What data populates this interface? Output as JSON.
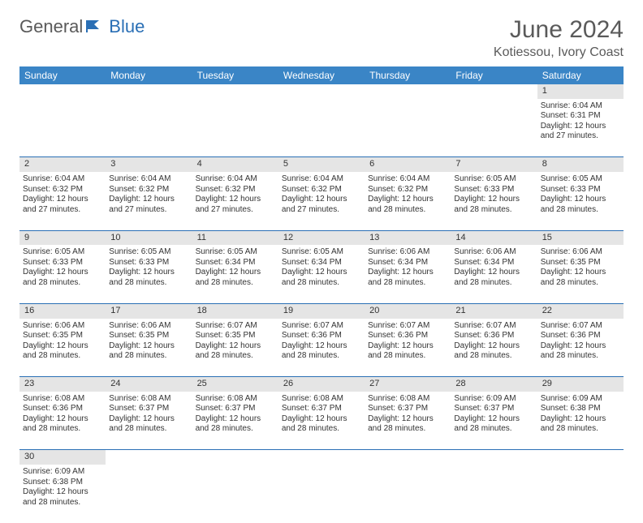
{
  "logo": {
    "general": "General",
    "blue": "Blue"
  },
  "title": "June 2024",
  "location": "Kotiessou, Ivory Coast",
  "colors": {
    "header_bg": "#3a85c6",
    "header_text": "#ffffff",
    "daynum_bg": "#e5e5e5",
    "border": "#2a6fb5",
    "text": "#333333",
    "logo_gray": "#5a5a5a",
    "logo_blue": "#2a6fb5"
  },
  "days_of_week": [
    "Sunday",
    "Monday",
    "Tuesday",
    "Wednesday",
    "Thursday",
    "Friday",
    "Saturday"
  ],
  "weeks": [
    {
      "nums": [
        "",
        "",
        "",
        "",
        "",
        "",
        "1"
      ],
      "cells": [
        null,
        null,
        null,
        null,
        null,
        null,
        {
          "sunrise": "6:04 AM",
          "sunset": "6:31 PM",
          "daylight": "12 hours and 27 minutes."
        }
      ]
    },
    {
      "nums": [
        "2",
        "3",
        "4",
        "5",
        "6",
        "7",
        "8"
      ],
      "cells": [
        {
          "sunrise": "6:04 AM",
          "sunset": "6:32 PM",
          "daylight": "12 hours and 27 minutes."
        },
        {
          "sunrise": "6:04 AM",
          "sunset": "6:32 PM",
          "daylight": "12 hours and 27 minutes."
        },
        {
          "sunrise": "6:04 AM",
          "sunset": "6:32 PM",
          "daylight": "12 hours and 27 minutes."
        },
        {
          "sunrise": "6:04 AM",
          "sunset": "6:32 PM",
          "daylight": "12 hours and 27 minutes."
        },
        {
          "sunrise": "6:04 AM",
          "sunset": "6:32 PM",
          "daylight": "12 hours and 28 minutes."
        },
        {
          "sunrise": "6:05 AM",
          "sunset": "6:33 PM",
          "daylight": "12 hours and 28 minutes."
        },
        {
          "sunrise": "6:05 AM",
          "sunset": "6:33 PM",
          "daylight": "12 hours and 28 minutes."
        }
      ]
    },
    {
      "nums": [
        "9",
        "10",
        "11",
        "12",
        "13",
        "14",
        "15"
      ],
      "cells": [
        {
          "sunrise": "6:05 AM",
          "sunset": "6:33 PM",
          "daylight": "12 hours and 28 minutes."
        },
        {
          "sunrise": "6:05 AM",
          "sunset": "6:33 PM",
          "daylight": "12 hours and 28 minutes."
        },
        {
          "sunrise": "6:05 AM",
          "sunset": "6:34 PM",
          "daylight": "12 hours and 28 minutes."
        },
        {
          "sunrise": "6:05 AM",
          "sunset": "6:34 PM",
          "daylight": "12 hours and 28 minutes."
        },
        {
          "sunrise": "6:06 AM",
          "sunset": "6:34 PM",
          "daylight": "12 hours and 28 minutes."
        },
        {
          "sunrise": "6:06 AM",
          "sunset": "6:34 PM",
          "daylight": "12 hours and 28 minutes."
        },
        {
          "sunrise": "6:06 AM",
          "sunset": "6:35 PM",
          "daylight": "12 hours and 28 minutes."
        }
      ]
    },
    {
      "nums": [
        "16",
        "17",
        "18",
        "19",
        "20",
        "21",
        "22"
      ],
      "cells": [
        {
          "sunrise": "6:06 AM",
          "sunset": "6:35 PM",
          "daylight": "12 hours and 28 minutes."
        },
        {
          "sunrise": "6:06 AM",
          "sunset": "6:35 PM",
          "daylight": "12 hours and 28 minutes."
        },
        {
          "sunrise": "6:07 AM",
          "sunset": "6:35 PM",
          "daylight": "12 hours and 28 minutes."
        },
        {
          "sunrise": "6:07 AM",
          "sunset": "6:36 PM",
          "daylight": "12 hours and 28 minutes."
        },
        {
          "sunrise": "6:07 AM",
          "sunset": "6:36 PM",
          "daylight": "12 hours and 28 minutes."
        },
        {
          "sunrise": "6:07 AM",
          "sunset": "6:36 PM",
          "daylight": "12 hours and 28 minutes."
        },
        {
          "sunrise": "6:07 AM",
          "sunset": "6:36 PM",
          "daylight": "12 hours and 28 minutes."
        }
      ]
    },
    {
      "nums": [
        "23",
        "24",
        "25",
        "26",
        "27",
        "28",
        "29"
      ],
      "cells": [
        {
          "sunrise": "6:08 AM",
          "sunset": "6:36 PM",
          "daylight": "12 hours and 28 minutes."
        },
        {
          "sunrise": "6:08 AM",
          "sunset": "6:37 PM",
          "daylight": "12 hours and 28 minutes."
        },
        {
          "sunrise": "6:08 AM",
          "sunset": "6:37 PM",
          "daylight": "12 hours and 28 minutes."
        },
        {
          "sunrise": "6:08 AM",
          "sunset": "6:37 PM",
          "daylight": "12 hours and 28 minutes."
        },
        {
          "sunrise": "6:08 AM",
          "sunset": "6:37 PM",
          "daylight": "12 hours and 28 minutes."
        },
        {
          "sunrise": "6:09 AM",
          "sunset": "6:37 PM",
          "daylight": "12 hours and 28 minutes."
        },
        {
          "sunrise": "6:09 AM",
          "sunset": "6:38 PM",
          "daylight": "12 hours and 28 minutes."
        }
      ]
    },
    {
      "nums": [
        "30",
        "",
        "",
        "",
        "",
        "",
        ""
      ],
      "cells": [
        {
          "sunrise": "6:09 AM",
          "sunset": "6:38 PM",
          "daylight": "12 hours and 28 minutes."
        },
        null,
        null,
        null,
        null,
        null,
        null
      ]
    }
  ],
  "labels": {
    "sunrise": "Sunrise:",
    "sunset": "Sunset:",
    "daylight": "Daylight:"
  }
}
